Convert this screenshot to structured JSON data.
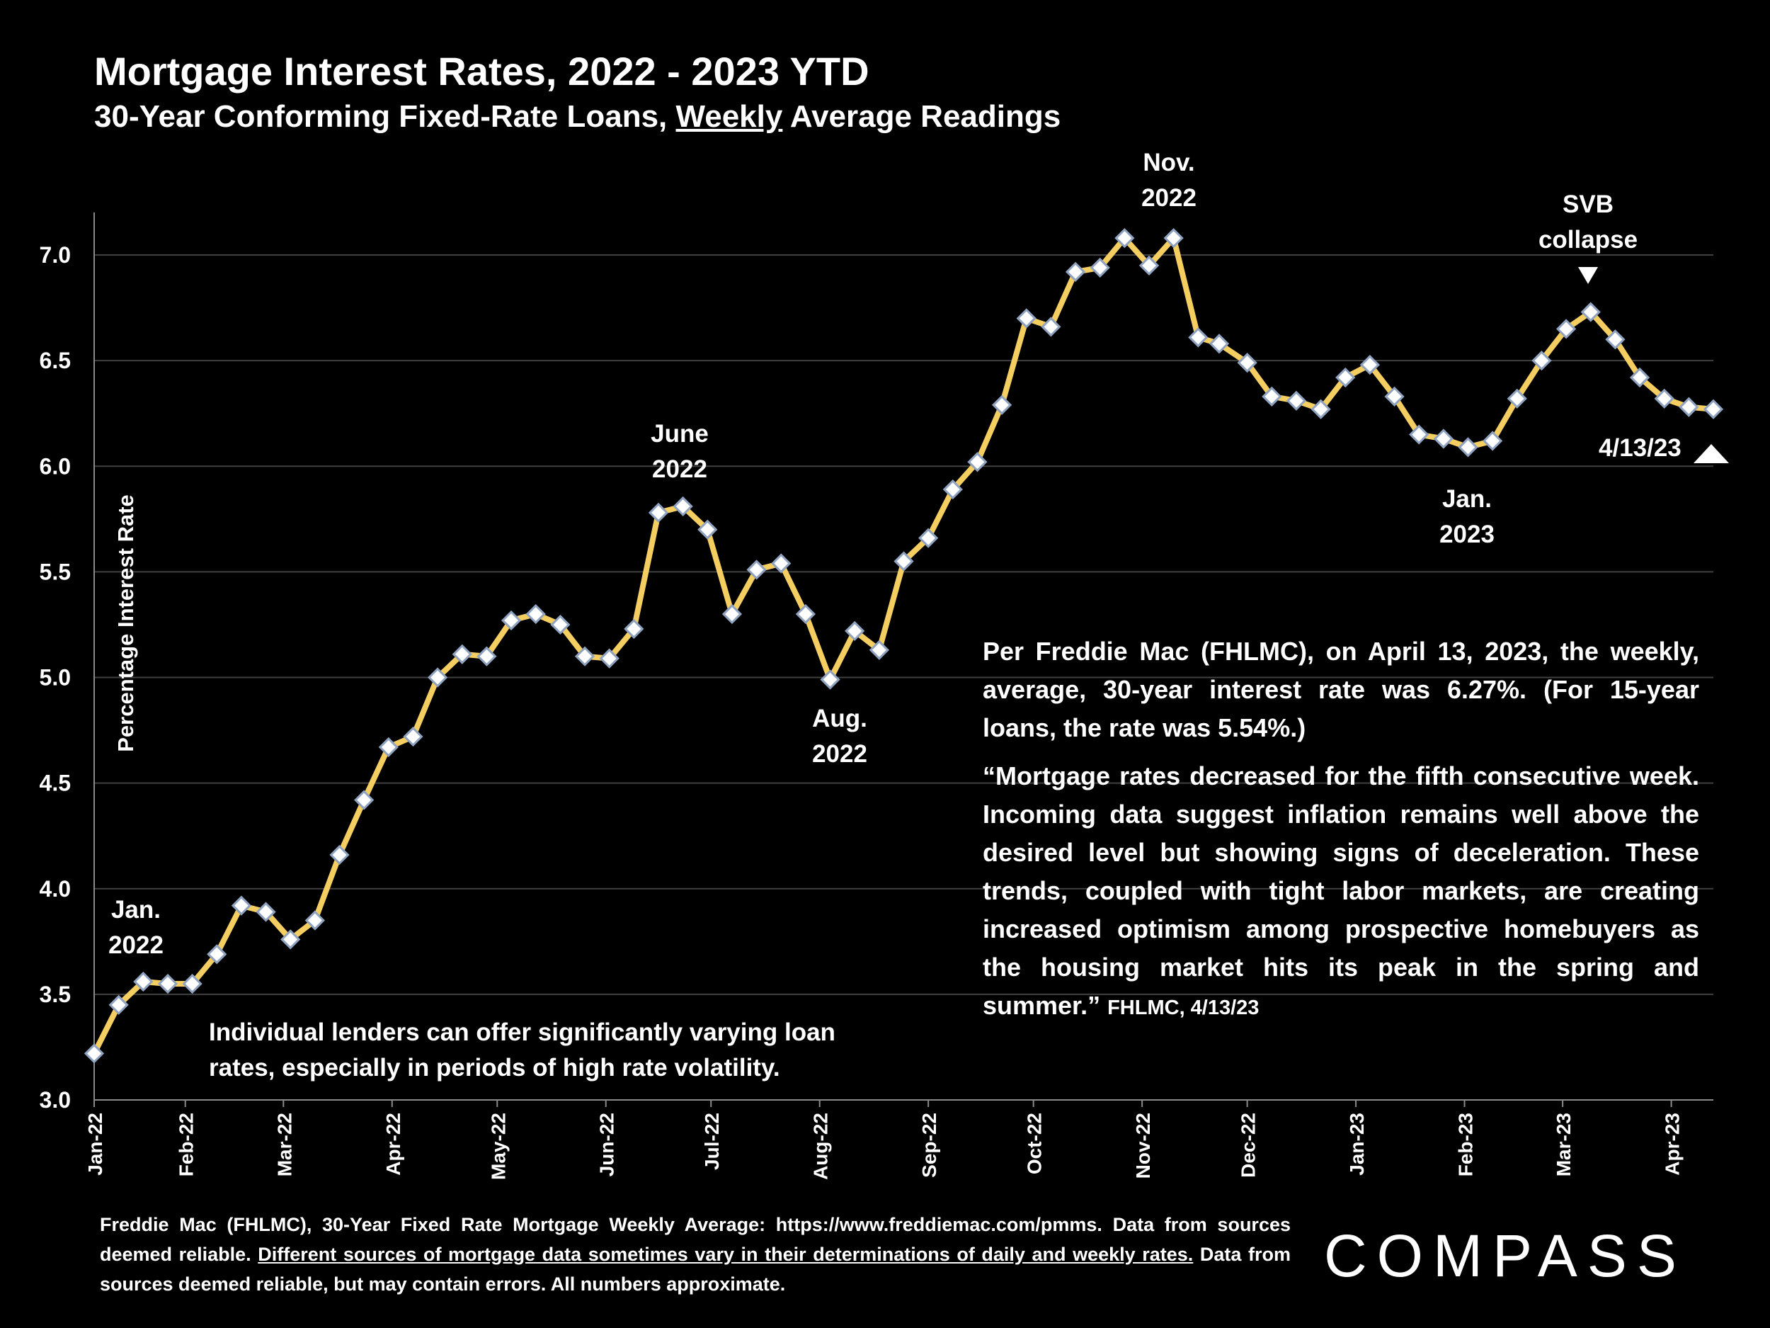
{
  "title": "Mortgage Interest Rates, 2022 - 2023 YTD",
  "subtitle_pre": "30-Year Conforming Fixed-Rate Loans, ",
  "subtitle_emph": "Weekly",
  "subtitle_post": " Average Readings",
  "colors": {
    "background": "#000000",
    "line": "#F5CE62",
    "marker_fill": "#FFFFFF",
    "marker_stroke": "#8FA3C0",
    "grid": "#404040",
    "text": "#FFFFFF"
  },
  "annotations": {
    "jan22": [
      "Jan.",
      "2022"
    ],
    "june22": [
      "June",
      "2022"
    ],
    "aug22": [
      "Aug.",
      "2022"
    ],
    "nov22": [
      "Nov.",
      "2022"
    ],
    "jan23": [
      "Jan.",
      "2023"
    ],
    "svb": [
      "SVB",
      "collapse"
    ],
    "latest": "4/13/23"
  },
  "quote": {
    "para1": "Per Freddie Mac (FHLMC), on April 13, 2023, the weekly, average, 30-year interest rate was 6.27%. (For 15-year loans, the rate was 5.54%.)",
    "para2": "“Mortgage rates decreased for the fifth consecutive week. Incoming data suggest inflation remains well above the desired level but showing signs of deceleration. These trends, coupled with tight labor markets, are creating increased optimism among prospective homebuyers as the housing market hits its peak in the spring and summer.”",
    "source": "FHLMC, 4/13/23"
  },
  "note": "Individual lenders can offer significantly varying loan rates, especially in periods of high rate volatility.",
  "footer": {
    "part1": "Freddie Mac (FHLMC), 30-Year Fixed Rate Mortgage Weekly Average:  https://www.freddiemac.com/pmms. Data from sources deemed reliable. ",
    "underlined": "Different sources of mortgage data sometimes vary in their determinations of daily and weekly rates.",
    "part2": " Data from sources deemed reliable, but may contain errors. All numbers approximate."
  },
  "logo": "COMPASS",
  "chart_data": {
    "type": "line",
    "title": "Mortgage Interest Rates, 2022 - 2023 YTD",
    "xlabel": "",
    "ylabel": "Percentage Interest  Rate",
    "ylim": [
      3.0,
      7.0
    ],
    "yticks": [
      "3.0",
      "3.5",
      "4.0",
      "4.5",
      "5.0",
      "5.5",
      "6.0",
      "6.5",
      "7.0"
    ],
    "grid": true,
    "x_start": "2022-01-06",
    "x_end": "2023-04-13",
    "month_ticks": [
      "Jan-22",
      "Feb-22",
      "Mar-22",
      "Apr-22",
      "May-22",
      "Jun-22",
      "Jul-22",
      "Aug-22",
      "Sep-22",
      "Oct-22",
      "Nov-22",
      "Dec-22",
      "Jan-23",
      "Feb-23",
      "Mar-23",
      "Apr-23"
    ],
    "month_tick_dates": [
      "2022-01-01",
      "2022-02-01",
      "2022-03-01",
      "2022-04-01",
      "2022-05-01",
      "2022-06-01",
      "2022-07-01",
      "2022-08-01",
      "2022-09-01",
      "2022-10-01",
      "2022-11-01",
      "2022-12-01",
      "2023-01-01",
      "2023-02-01",
      "2023-03-01",
      "2023-04-01"
    ],
    "series": [
      {
        "name": "30-Year Fixed Rate (weekly)",
        "dates": [
          "2022-01-06",
          "2022-01-13",
          "2022-01-20",
          "2022-01-27",
          "2022-02-03",
          "2022-02-10",
          "2022-02-17",
          "2022-02-24",
          "2022-03-03",
          "2022-03-10",
          "2022-03-17",
          "2022-03-24",
          "2022-03-31",
          "2022-04-07",
          "2022-04-14",
          "2022-04-21",
          "2022-04-28",
          "2022-05-05",
          "2022-05-12",
          "2022-05-19",
          "2022-05-26",
          "2022-06-02",
          "2022-06-09",
          "2022-06-16",
          "2022-06-23",
          "2022-06-30",
          "2022-07-07",
          "2022-07-14",
          "2022-07-21",
          "2022-07-28",
          "2022-08-04",
          "2022-08-11",
          "2022-08-18",
          "2022-08-25",
          "2022-09-01",
          "2022-09-08",
          "2022-09-15",
          "2022-09-22",
          "2022-09-29",
          "2022-10-06",
          "2022-10-13",
          "2022-10-20",
          "2022-10-27",
          "2022-11-03",
          "2022-11-10",
          "2022-11-17",
          "2022-11-23",
          "2022-12-01",
          "2022-12-08",
          "2022-12-15",
          "2022-12-22",
          "2022-12-29",
          "2023-01-05",
          "2023-01-12",
          "2023-01-19",
          "2023-01-26",
          "2023-02-02",
          "2023-02-09",
          "2023-02-16",
          "2023-02-23",
          "2023-03-02",
          "2023-03-09",
          "2023-03-16",
          "2023-03-23",
          "2023-03-30",
          "2023-04-06",
          "2023-04-13"
        ],
        "values": [
          3.22,
          3.45,
          3.56,
          3.55,
          3.55,
          3.69,
          3.92,
          3.89,
          3.76,
          3.85,
          4.16,
          4.42,
          4.67,
          4.72,
          5.0,
          5.11,
          5.1,
          5.27,
          5.3,
          5.25,
          5.1,
          5.09,
          5.23,
          5.78,
          5.81,
          5.7,
          5.3,
          5.51,
          5.54,
          5.3,
          4.99,
          5.22,
          5.13,
          5.55,
          5.66,
          5.89,
          6.02,
          6.29,
          6.7,
          6.66,
          6.92,
          6.94,
          7.08,
          6.95,
          7.08,
          6.61,
          6.58,
          6.49,
          6.33,
          6.31,
          6.27,
          6.42,
          6.48,
          6.33,
          6.15,
          6.13,
          6.09,
          6.12,
          6.32,
          6.5,
          6.65,
          6.73,
          6.6,
          6.42,
          6.32,
          6.28,
          6.27
        ]
      }
    ]
  }
}
